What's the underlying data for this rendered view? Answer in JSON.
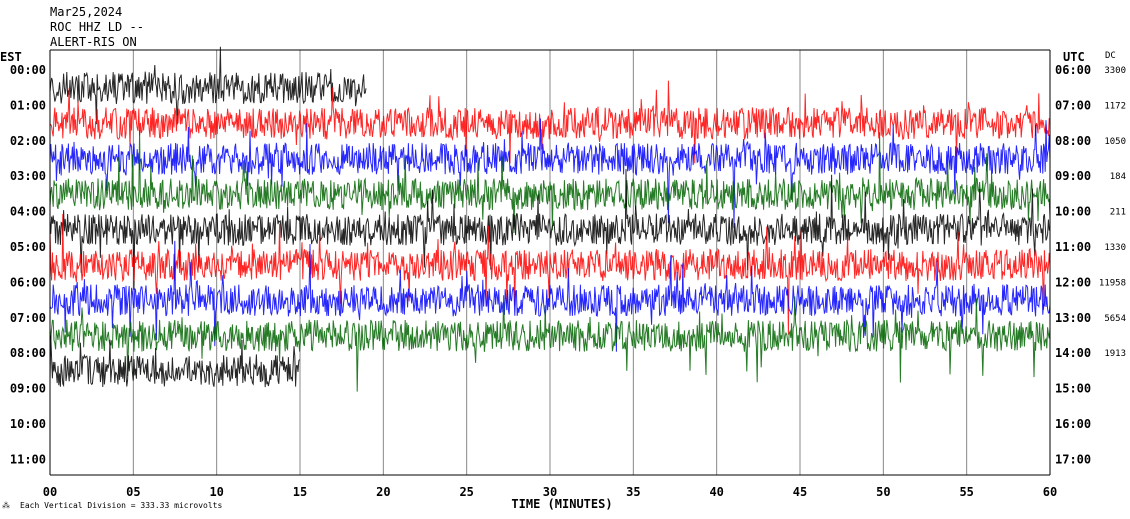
{
  "chart_data": {
    "type": "line",
    "title": "Mar25,2024",
    "station_line": "ROC HHZ LD --",
    "filter_line": "ALERT-RIS ON",
    "xlabel": "TIME (MINUTES)",
    "xlim": [
      0,
      60
    ],
    "x_ticks": [
      "00",
      "05",
      "10",
      "15",
      "20",
      "25",
      "30",
      "35",
      "40",
      "45",
      "50",
      "55",
      "60"
    ],
    "left_axis_label": "EST",
    "right_axis_label": "UTC",
    "dc_label": "DC",
    "est_ticks": [
      "00:00",
      "01:00",
      "02:00",
      "03:00",
      "04:00",
      "05:00",
      "06:00",
      "07:00",
      "08:00",
      "09:00",
      "10:00",
      "11:00"
    ],
    "utc_ticks": [
      "06:00",
      "07:00",
      "08:00",
      "09:00",
      "10:00",
      "11:00",
      "12:00",
      "13:00",
      "14:00",
      "15:00",
      "16:00",
      "17:00"
    ],
    "dc_values": [
      "3300",
      "1172",
      "1050",
      "184",
      "211",
      "1330",
      "11958",
      "5654",
      "1913"
    ],
    "footer": "Each Vertical Division =  333.33 microvolts",
    "trace_colors": [
      "#000000",
      "#ff0000",
      "#0000ff",
      "#006400"
    ],
    "grid_x": true,
    "series": [
      {
        "hour": 0,
        "color": "#000000",
        "x_end": 19
      },
      {
        "hour": 1,
        "color": "#ff0000",
        "x_end": 60
      },
      {
        "hour": 2,
        "color": "#0000ff",
        "x_end": 60
      },
      {
        "hour": 3,
        "color": "#006400",
        "x_end": 60
      },
      {
        "hour": 4,
        "color": "#000000",
        "x_end": 60
      },
      {
        "hour": 5,
        "color": "#ff0000",
        "x_end": 60
      },
      {
        "hour": 6,
        "color": "#0000ff",
        "x_end": 60
      },
      {
        "hour": 7,
        "color": "#006400",
        "x_end": 60
      },
      {
        "hour": 8,
        "color": "#000000",
        "x_end": 15
      }
    ]
  }
}
